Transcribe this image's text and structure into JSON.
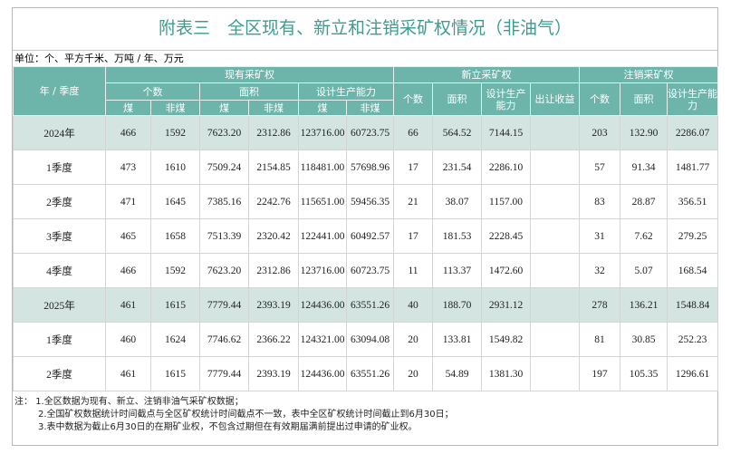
{
  "header": {
    "title": "附表三　全区现有、新立和注销采矿权情况（非油气）",
    "unit": "单位：个、平方千米、万吨 / 年、万元"
  },
  "table": {
    "columns": {
      "period": "年 / 季度",
      "existing": "现有采矿权",
      "new": "新立采矿权",
      "cancelled": "注销采矿权",
      "count": "个数",
      "area": "面积",
      "capacity": "设计生产能力",
      "revenue": "出让收益",
      "coal": "煤",
      "noncoal": "非煤"
    },
    "rows": [
      {
        "label": "2024年",
        "fill": "#d4e4e0",
        "existing": [
          "466",
          "1592",
          "7623.20",
          "2312.86",
          "123716.00",
          "60723.75"
        ],
        "new": [
          "66",
          "564.52",
          "7144.15"
        ],
        "cancelled": [
          "203",
          "132.90",
          "2286.07"
        ]
      },
      {
        "label": "1季度",
        "existing": [
          "473",
          "1610",
          "7509.24",
          "2154.85",
          "118481.00",
          "57698.96"
        ],
        "new": [
          "17",
          "231.54",
          "2286.10"
        ],
        "cancelled": [
          "57",
          "91.34",
          "1481.77"
        ]
      },
      {
        "label": "2季度",
        "existing": [
          "471",
          "1645",
          "7385.16",
          "2242.76",
          "115651.00",
          "59456.35"
        ],
        "new": [
          "21",
          "38.07",
          "1157.00"
        ],
        "cancelled": [
          "83",
          "28.87",
          "356.51"
        ]
      },
      {
        "label": "3季度",
        "existing": [
          "465",
          "1658",
          "7513.39",
          "2320.42",
          "122441.00",
          "60492.57"
        ],
        "new": [
          "17",
          "181.53",
          "2228.45"
        ],
        "cancelled": [
          "31",
          "7.62",
          "279.25"
        ]
      },
      {
        "label": "4季度",
        "existing": [
          "466",
          "1592",
          "7623.20",
          "2312.86",
          "123716.00",
          "60723.75"
        ],
        "new": [
          "11",
          "113.37",
          "1472.60"
        ],
        "cancelled": [
          "32",
          "5.07",
          "168.54"
        ]
      },
      {
        "label": "2025年",
        "fill": "#d4e4e0",
        "existing": [
          "461",
          "1615",
          "7779.44",
          "2393.19",
          "124436.00",
          "63551.26"
        ],
        "new": [
          "40",
          "188.70",
          "2931.12"
        ],
        "cancelled": [
          "278",
          "136.21",
          "1548.84"
        ]
      },
      {
        "label": "1季度",
        "existing": [
          "460",
          "1624",
          "7746.62",
          "2366.22",
          "124321.00",
          "63094.08"
        ],
        "new": [
          "20",
          "133.81",
          "1549.82"
        ],
        "cancelled": [
          "81",
          "30.85",
          "252.23"
        ]
      },
      {
        "label": "2季度",
        "existing": [
          "461",
          "1615",
          "7779.44",
          "2393.19",
          "124436.00",
          "63551.26"
        ],
        "new": [
          "20",
          "54.89",
          "1381.30"
        ],
        "cancelled": [
          "197",
          "105.35",
          "1296.61"
        ]
      }
    ]
  },
  "notes": {
    "label": "注：",
    "items": [
      "1.全区数据为现有、新立、注销非油气采矿权数据；",
      "2.全国矿权数据统计时间截点与全区矿权统计时间截点不一致，表中全区矿权统计时间截止到6月30日；",
      "3.表中数据为截止6月30日的在期矿业权，不包含过期但在有效期届满前提出过申请的矿业权。"
    ]
  }
}
